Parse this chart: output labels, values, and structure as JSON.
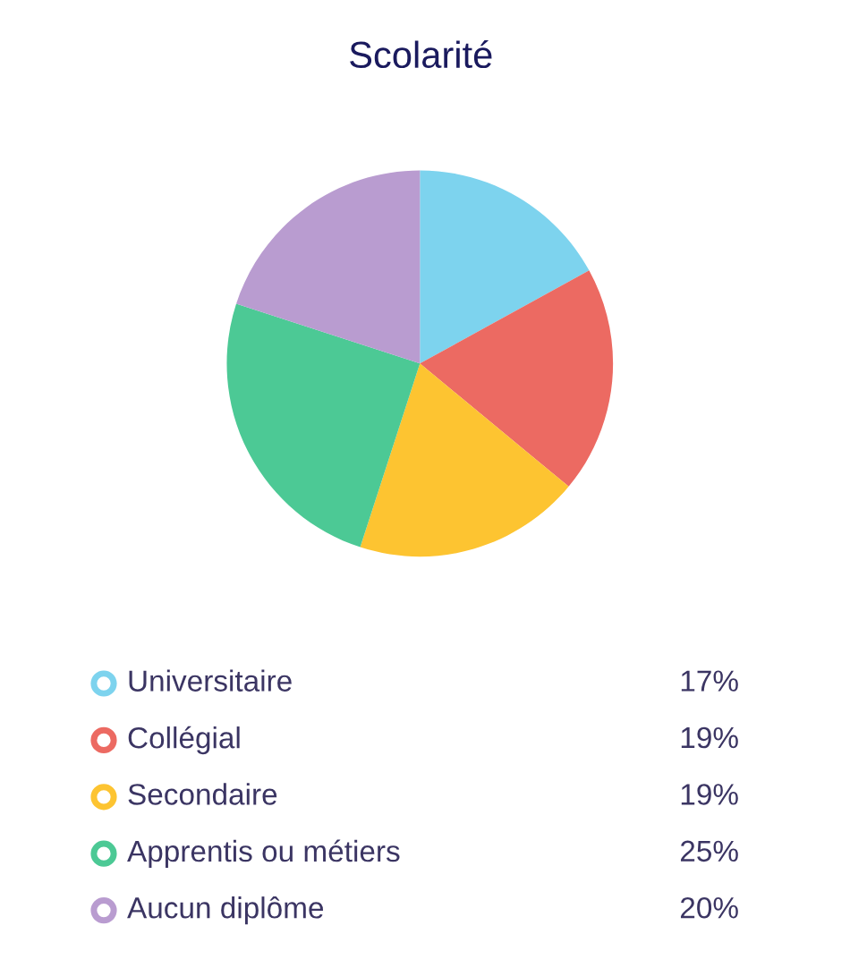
{
  "chart_data": {
    "type": "pie",
    "title": "Scolarité",
    "categories": [
      "Universitaire",
      "Collégial",
      "Secondaire",
      "Apprentis ou métiers",
      "Aucun diplôme"
    ],
    "values": [
      17,
      19,
      19,
      25,
      20
    ],
    "value_labels": [
      "17%",
      "19%",
      "19%",
      "25%",
      "20%"
    ],
    "colors": [
      "#7dd3ee",
      "#ec6a62",
      "#fdc431",
      "#4cc995",
      "#b99cd0"
    ],
    "legend": "bottom"
  }
}
